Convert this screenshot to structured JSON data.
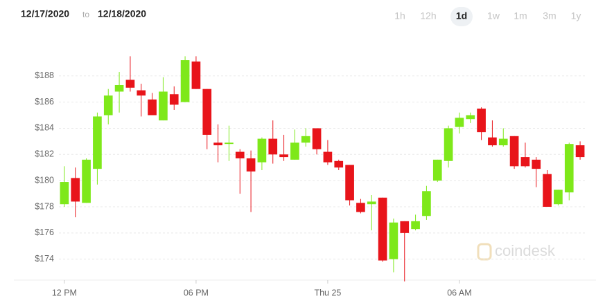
{
  "date_range": {
    "from": "12/17/2020",
    "separator": "to",
    "to": "12/18/2020"
  },
  "timeframes": [
    "1h",
    "12h",
    "1d",
    "1w",
    "1m",
    "3m",
    "1y"
  ],
  "selected_timeframe": "1d",
  "watermark": "coindesk",
  "chart_data": {
    "type": "candlestick",
    "categories": [
      "12 PM",
      null,
      null,
      null,
      null,
      null,
      null,
      null,
      null,
      null,
      null,
      null,
      "06 PM",
      null,
      null,
      null,
      null,
      null,
      null,
      null,
      null,
      null,
      null,
      null,
      "Thu 25",
      null,
      null,
      null,
      null,
      null,
      null,
      null,
      null,
      null,
      null,
      null,
      "06 AM",
      null,
      null,
      null,
      null,
      null,
      null,
      null,
      null,
      null,
      null,
      null
    ],
    "open": [
      178.2,
      180.2,
      178.3,
      180.9,
      185.0,
      186.8,
      187.7,
      186.9,
      186.2,
      184.6,
      186.6,
      186.0,
      189.1,
      187.0,
      182.9,
      182.8,
      182.2,
      181.7,
      181.4,
      183.2,
      182.0,
      181.6,
      182.9,
      184.0,
      182.2,
      181.5,
      181.2,
      178.3,
      178.2,
      178.7,
      174.0,
      176.9,
      176.3,
      177.3,
      180.0,
      181.5,
      184.1,
      184.7,
      185.5,
      183.3,
      182.7,
      183.4,
      181.8,
      181.6,
      180.5,
      178.2,
      179.1,
      182.7
    ],
    "high": [
      181.1,
      181.0,
      181.7,
      185.2,
      187.0,
      188.3,
      189.5,
      187.4,
      186.7,
      187.9,
      187.2,
      189.5,
      189.5,
      187.0,
      184.3,
      184.2,
      182.4,
      182.3,
      183.3,
      184.6,
      183.5,
      183.9,
      184.0,
      184.0,
      183.1,
      181.6,
      181.2,
      178.6,
      178.9,
      178.7,
      177.1,
      176.9,
      177.4,
      179.6,
      181.6,
      184.2,
      185.2,
      185.2,
      185.6,
      184.6,
      184.0,
      183.4,
      182.9,
      181.8,
      180.8,
      179.3,
      182.9,
      183.0
    ],
    "low": [
      178.0,
      177.2,
      178.3,
      179.7,
      184.3,
      185.2,
      186.8,
      184.9,
      185.0,
      184.6,
      185.4,
      186.0,
      187.0,
      182.4,
      181.4,
      181.5,
      179.0,
      177.6,
      180.8,
      181.3,
      181.5,
      181.6,
      182.6,
      182.0,
      181.2,
      180.8,
      178.1,
      177.5,
      176.2,
      173.8,
      173.0,
      172.3,
      176.2,
      177.0,
      179.9,
      181.0,
      183.6,
      184.4,
      183.1,
      182.6,
      182.6,
      180.9,
      181.0,
      179.5,
      178.0,
      178.1,
      178.5,
      181.6
    ],
    "close": [
      179.9,
      178.4,
      181.6,
      184.9,
      186.5,
      187.3,
      187.1,
      186.5,
      185.0,
      186.8,
      185.8,
      189.2,
      187.0,
      183.5,
      182.7,
      182.9,
      181.7,
      180.7,
      183.2,
      182.0,
      181.8,
      182.9,
      183.4,
      182.4,
      181.4,
      181.0,
      178.5,
      177.6,
      178.4,
      173.9,
      176.8,
      176.0,
      176.9,
      179.2,
      181.6,
      184.0,
      184.8,
      185.0,
      183.7,
      182.7,
      183.2,
      181.1,
      181.1,
      180.9,
      178.0,
      179.3,
      182.8,
      181.8
    ],
    "up_color": "#7ee81a",
    "down_color": "#e8141a",
    "ylim": [
      172.4,
      190.1
    ],
    "yticks": [
      {
        "value": 174,
        "label": "$174"
      },
      {
        "value": 176,
        "label": "$176"
      },
      {
        "value": 178,
        "label": "$178"
      },
      {
        "value": 180,
        "label": "$180"
      },
      {
        "value": 182,
        "label": "$182"
      },
      {
        "value": 184,
        "label": "$184"
      },
      {
        "value": 186,
        "label": "$186"
      },
      {
        "value": 188,
        "label": "$188"
      }
    ],
    "grid": true
  }
}
